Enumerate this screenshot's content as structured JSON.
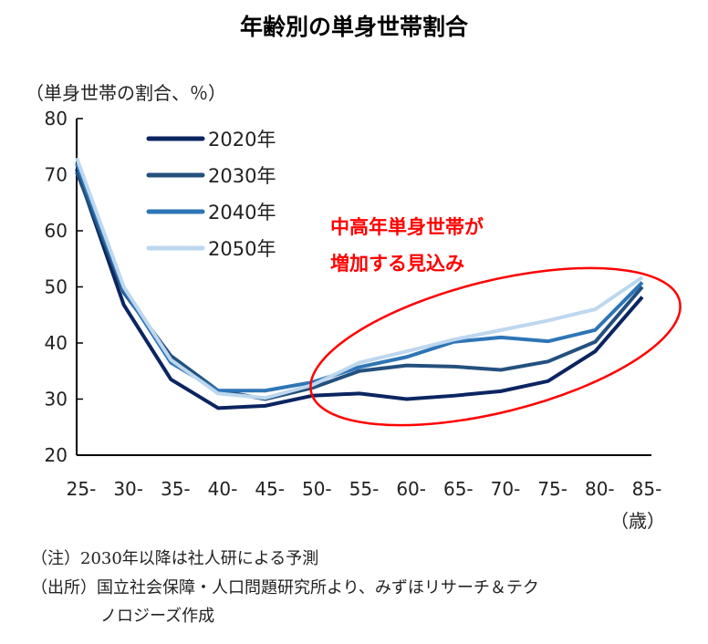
{
  "chart_data": {
    "type": "line",
    "title": "年齢別の単身世帯割合",
    "ylabel": "（単身世帯の割合、％）",
    "xlabel": "（歳）",
    "categories": [
      "25-",
      "30-",
      "35-",
      "40-",
      "45-",
      "50-",
      "55-",
      "60-",
      "65-",
      "70-",
      "75-",
      "80-",
      "85-"
    ],
    "ylim": [
      20,
      80
    ],
    "yticks": [
      20,
      30,
      40,
      50,
      60,
      70,
      80
    ],
    "grid": false,
    "legend_placement": "top-left",
    "series": [
      {
        "name": "2020年",
        "color": "#0b2561",
        "values": [
          71,
          46.8,
          33.5,
          28.4,
          28.8,
          30.6,
          31,
          30,
          30.6,
          31.4,
          33.2,
          38.5,
          48.2
        ]
      },
      {
        "name": "2030年",
        "color": "#24507e",
        "values": [
          70.5,
          49,
          37.7,
          31.5,
          30,
          32,
          35,
          36,
          35.8,
          35.2,
          36.7,
          40.2,
          50
        ]
      },
      {
        "name": "2040年",
        "color": "#2e75b6",
        "values": [
          72,
          49.5,
          36.5,
          31.5,
          31.5,
          33,
          35.7,
          37.5,
          40.2,
          41,
          40.3,
          42.3,
          50.8
        ]
      },
      {
        "name": "2050年",
        "color": "#bdd7ee",
        "values": [
          73,
          50,
          37,
          31,
          30.2,
          32.5,
          36.5,
          38.5,
          40.6,
          42.3,
          44,
          46,
          51.7
        ]
      }
    ],
    "annotation": {
      "lines": [
        "中高年単身世帯が",
        "増加する見込み"
      ],
      "color": "#ff0000"
    }
  },
  "notes": [
    "（注）2030年以降は社人研による予測",
    "（出所）国立社会保障・人口問題研究所より、みずほリサーチ＆テク",
    "ノロジーズ作成"
  ]
}
